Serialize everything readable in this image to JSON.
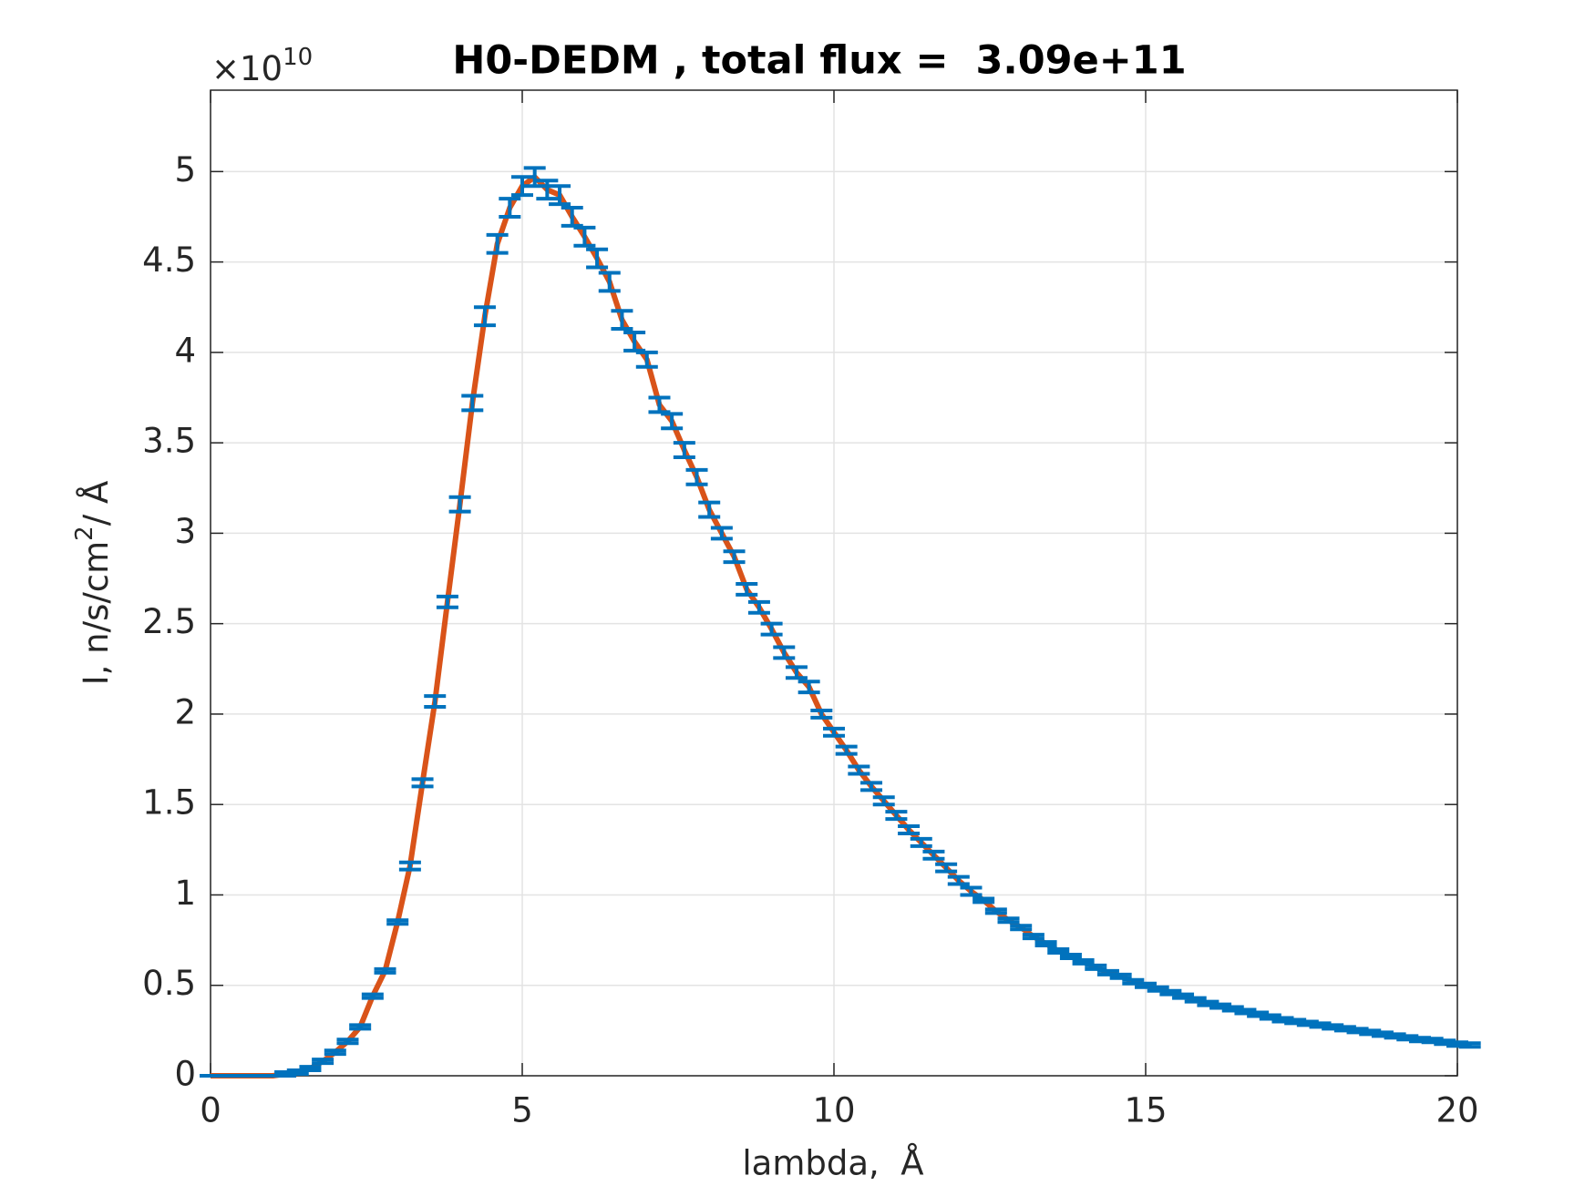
{
  "chart_data": {
    "type": "errorbar",
    "title": "H0-DEDM , total flux =  3.09e+11",
    "x_label": "lambda,  Å",
    "y_label": "I, n/s/cm",
    "y_label_sup": "2",
    "y_label_end": "/ Å",
    "y_multiplier": "×10",
    "y_multiplier_exp": "10",
    "xlim": [
      0,
      20
    ],
    "ylim": [
      0,
      5.45
    ],
    "xticks": [
      0,
      5,
      10,
      15,
      20
    ],
    "yticks": [
      0,
      0.5,
      1,
      1.5,
      2,
      2.5,
      3,
      3.5,
      4,
      4.5,
      5
    ],
    "grid": true,
    "x": [
      0,
      0.2,
      0.4,
      0.6,
      0.8,
      1.0,
      1.2,
      1.4,
      1.6,
      1.8,
      2.0,
      2.2,
      2.4,
      2.6,
      2.8,
      3.0,
      3.2,
      3.4,
      3.6,
      3.8,
      4.0,
      4.2,
      4.4,
      4.6,
      4.8,
      5.0,
      5.2,
      5.4,
      5.6,
      5.8,
      6.0,
      6.2,
      6.4,
      6.6,
      6.8,
      7.0,
      7.2,
      7.4,
      7.6,
      7.8,
      8.0,
      8.2,
      8.4,
      8.6,
      8.8,
      9.0,
      9.2,
      9.4,
      9.6,
      9.8,
      10.0,
      10.2,
      10.4,
      10.6,
      10.8,
      11.0,
      11.2,
      11.4,
      11.6,
      11.8,
      12.0,
      12.2,
      12.4,
      12.6,
      12.8,
      13.0,
      13.2,
      13.4,
      13.6,
      13.8,
      14.0,
      14.2,
      14.4,
      14.6,
      14.8,
      15.0,
      15.2,
      15.4,
      15.6,
      15.8,
      16.0,
      16.2,
      16.4,
      16.6,
      16.8,
      17.0,
      17.2,
      17.4,
      17.6,
      17.8,
      18.0,
      18.2,
      18.4,
      18.6,
      18.8,
      19.0,
      19.2,
      19.4,
      19.6,
      19.8,
      20.0,
      20.2
    ],
    "series": [
      {
        "style": "line",
        "color": "#d95319",
        "values": [
          0,
          0,
          0,
          0,
          0,
          0,
          0.01,
          0.02,
          0.04,
          0.08,
          0.13,
          0.19,
          0.27,
          0.44,
          0.58,
          0.85,
          1.16,
          1.62,
          2.07,
          2.62,
          3.16,
          3.72,
          4.2,
          4.6,
          4.8,
          4.92,
          4.97,
          4.9,
          4.87,
          4.75,
          4.64,
          4.52,
          4.39,
          4.18,
          4.06,
          3.96,
          3.71,
          3.62,
          3.46,
          3.31,
          3.13,
          3.0,
          2.87,
          2.69,
          2.59,
          2.47,
          2.34,
          2.23,
          2.15,
          2.0,
          1.9,
          1.8,
          1.69,
          1.6,
          1.52,
          1.44,
          1.36,
          1.29,
          1.22,
          1.15,
          1.08,
          1.02,
          0.97,
          0.91,
          0.86,
          0.82,
          0.77,
          0.73,
          0.69,
          0.66,
          0.63,
          0.6,
          0.57,
          0.55,
          0.52,
          0.5,
          0.48,
          0.46,
          0.44,
          0.42,
          0.4,
          0.385,
          0.37,
          0.355,
          0.34,
          0.325,
          0.31,
          0.3,
          0.29,
          0.28,
          0.27,
          0.26,
          0.25,
          0.24,
          0.23,
          0.22,
          0.21,
          0.2,
          0.195,
          0.185,
          0.175,
          0.17
        ]
      },
      {
        "style": "errorbar",
        "color": "#0072bd",
        "values": [
          0,
          0,
          0,
          0,
          0,
          0,
          0.01,
          0.02,
          0.04,
          0.08,
          0.13,
          0.19,
          0.27,
          0.44,
          0.58,
          0.85,
          1.16,
          1.62,
          2.07,
          2.62,
          3.16,
          3.72,
          4.2,
          4.6,
          4.8,
          4.92,
          4.97,
          4.9,
          4.87,
          4.75,
          4.64,
          4.52,
          4.39,
          4.18,
          4.06,
          3.96,
          3.71,
          3.62,
          3.46,
          3.31,
          3.13,
          3.0,
          2.87,
          2.69,
          2.59,
          2.47,
          2.34,
          2.23,
          2.15,
          2.0,
          1.9,
          1.8,
          1.69,
          1.6,
          1.52,
          1.44,
          1.36,
          1.29,
          1.22,
          1.15,
          1.08,
          1.02,
          0.97,
          0.91,
          0.86,
          0.82,
          0.77,
          0.73,
          0.69,
          0.66,
          0.63,
          0.6,
          0.57,
          0.55,
          0.52,
          0.5,
          0.48,
          0.46,
          0.44,
          0.42,
          0.4,
          0.385,
          0.37,
          0.355,
          0.34,
          0.325,
          0.31,
          0.3,
          0.29,
          0.28,
          0.27,
          0.26,
          0.25,
          0.24,
          0.23,
          0.22,
          0.21,
          0.2,
          0.195,
          0.185,
          0.175,
          0.17
        ],
        "errors": [
          0,
          0,
          0,
          0,
          0,
          0,
          0.01,
          0.01,
          0.01,
          0.01,
          0.01,
          0.01,
          0.01,
          0.01,
          0.01,
          0.01,
          0.02,
          0.02,
          0.03,
          0.03,
          0.04,
          0.04,
          0.05,
          0.05,
          0.05,
          0.05,
          0.05,
          0.05,
          0.05,
          0.05,
          0.05,
          0.05,
          0.05,
          0.05,
          0.05,
          0.04,
          0.04,
          0.04,
          0.04,
          0.04,
          0.04,
          0.03,
          0.03,
          0.03,
          0.03,
          0.03,
          0.03,
          0.03,
          0.03,
          0.02,
          0.02,
          0.02,
          0.02,
          0.02,
          0.02,
          0.02,
          0.02,
          0.02,
          0.02,
          0.02,
          0.02,
          0.02,
          0.01,
          0.01,
          0.01,
          0.01,
          0.01,
          0.01,
          0.01,
          0.01,
          0.01,
          0.01,
          0.01,
          0.01,
          0.01,
          0.01,
          0.01,
          0.01,
          0.01,
          0.01,
          0.01,
          0.01,
          0.01,
          0.01,
          0.01,
          0.01,
          0.01,
          0.01,
          0.01,
          0.01,
          0.01,
          0.01,
          0.01,
          0.01,
          0.01,
          0.01,
          0.01,
          0.01,
          0.01,
          0.01,
          0.01,
          0.01
        ]
      }
    ]
  }
}
